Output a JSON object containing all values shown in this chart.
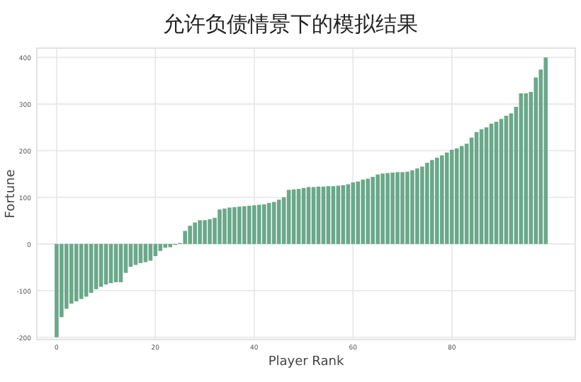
{
  "chart_data": {
    "type": "bar",
    "title": "允许负债情景下的模拟结果",
    "xlabel": "Player Rank",
    "ylabel": "Fortune",
    "color": "#6aa88a",
    "grid": true,
    "x": [
      0,
      1,
      2,
      3,
      4,
      5,
      6,
      7,
      8,
      9,
      10,
      11,
      12,
      13,
      14,
      15,
      16,
      17,
      18,
      19,
      20,
      21,
      22,
      23,
      24,
      25,
      26,
      27,
      28,
      29,
      30,
      31,
      32,
      33,
      34,
      35,
      36,
      37,
      38,
      39,
      40,
      41,
      42,
      43,
      44,
      45,
      46,
      47,
      48,
      49,
      50,
      51,
      52,
      53,
      54,
      55,
      56,
      57,
      58,
      59,
      60,
      61,
      62,
      63,
      64,
      65,
      66,
      67,
      68,
      69,
      70,
      71,
      72,
      73,
      74,
      75,
      76,
      77,
      78,
      79,
      80,
      81,
      82,
      83,
      84,
      85,
      86,
      87,
      88,
      89,
      90,
      91,
      92,
      93,
      94,
      95,
      96,
      97,
      98,
      99
    ],
    "values": [
      -200,
      -157,
      -139,
      -128,
      -123,
      -118,
      -113,
      -105,
      -97,
      -92,
      -87,
      -84,
      -82,
      -82,
      -62,
      -49,
      -45,
      -41,
      -39,
      -36,
      -26,
      -15,
      -8,
      -7,
      -2,
      2,
      28,
      39,
      46,
      51,
      51,
      53,
      56,
      74,
      76,
      78,
      79,
      80,
      81,
      82,
      83,
      84,
      85,
      88,
      90,
      95,
      100,
      116,
      117,
      118,
      120,
      122,
      122,
      123,
      123,
      124,
      124,
      125,
      126,
      128,
      132,
      134,
      138,
      140,
      144,
      149,
      151,
      152,
      153,
      154,
      154,
      155,
      158,
      162,
      166,
      174,
      180,
      185,
      190,
      196,
      202,
      205,
      210,
      215,
      228,
      240,
      246,
      250,
      258,
      262,
      268,
      275,
      280,
      294,
      323,
      323,
      326,
      357,
      374,
      400
    ],
    "xlim": [
      -4,
      105
    ],
    "ylim": [
      -205,
      420
    ],
    "xticks": [
      0,
      20,
      40,
      60,
      80
    ],
    "yticks": [
      -200,
      -100,
      0,
      100,
      200,
      300,
      400
    ]
  }
}
